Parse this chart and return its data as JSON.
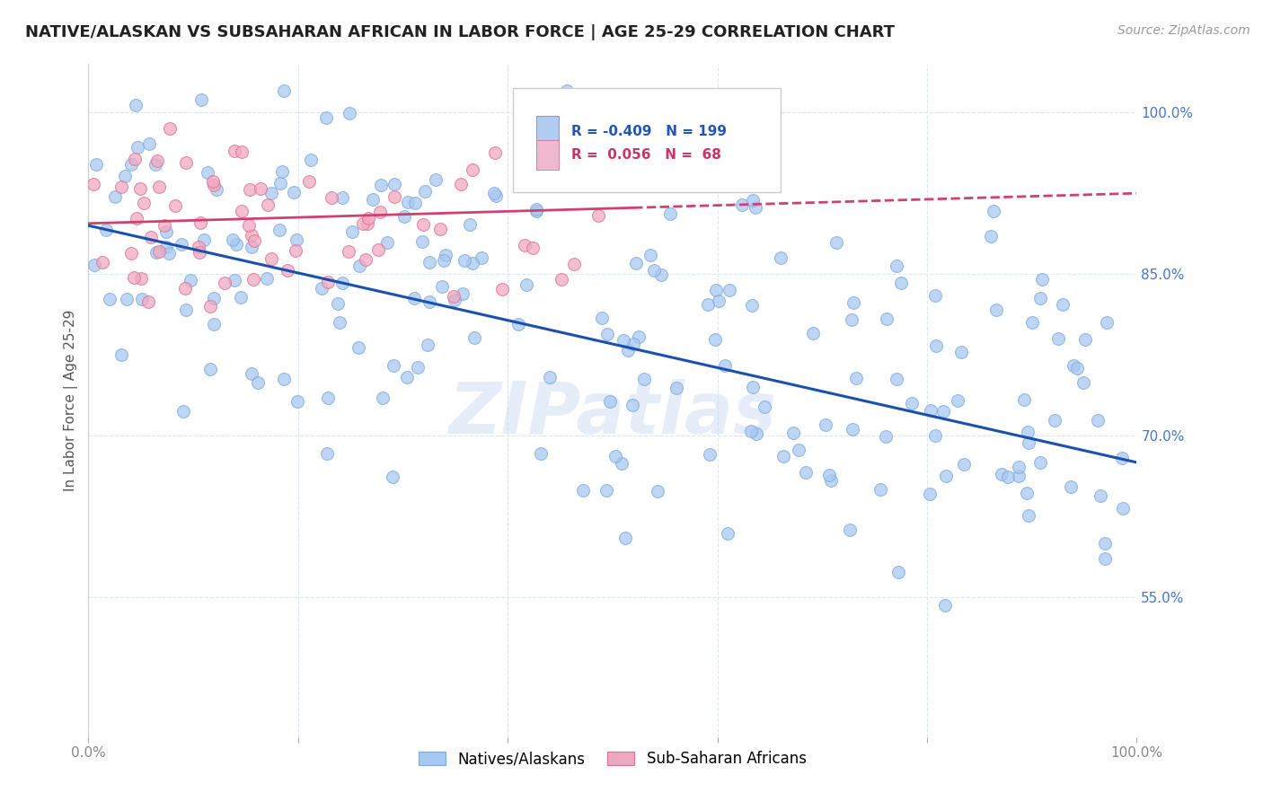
{
  "title": "NATIVE/ALASKAN VS SUBSAHARAN AFRICAN IN LABOR FORCE | AGE 25-29 CORRELATION CHART",
  "source_text": "Source: ZipAtlas.com",
  "ylabel": "In Labor Force | Age 25-29",
  "xlim": [
    0.0,
    1.0
  ],
  "ylim": [
    0.42,
    1.045
  ],
  "xticks": [
    0.0,
    0.2,
    0.4,
    0.6,
    0.8,
    1.0
  ],
  "xtick_labels": [
    "0.0%",
    "",
    "",
    "",
    "",
    "100.0%"
  ],
  "ytick_labels": [
    "55.0%",
    "70.0%",
    "85.0%",
    "100.0%"
  ],
  "yticks": [
    0.55,
    0.7,
    0.85,
    1.0
  ],
  "blue_color": "#a8c8f0",
  "pink_color": "#f0a8c0",
  "blue_edge_color": "#7aaae0",
  "pink_edge_color": "#e07090",
  "blue_line_color": "#1a50b0",
  "pink_line_color": "#d04070",
  "legend_blue_face": "#b0ccf0",
  "legend_pink_face": "#f0b8cc",
  "watermark": "ZIPatlas",
  "blue_N": 199,
  "pink_N": 68,
  "blue_scatter_seed": 42,
  "pink_scatter_seed": 123,
  "legend_label_blue": "Natives/Alaskans",
  "legend_label_pink": "Sub-Saharan Africans",
  "background_color": "#ffffff",
  "grid_color": "#d8e8f8",
  "ytick_color": "#4477cc",
  "xtick_color": "#888888"
}
